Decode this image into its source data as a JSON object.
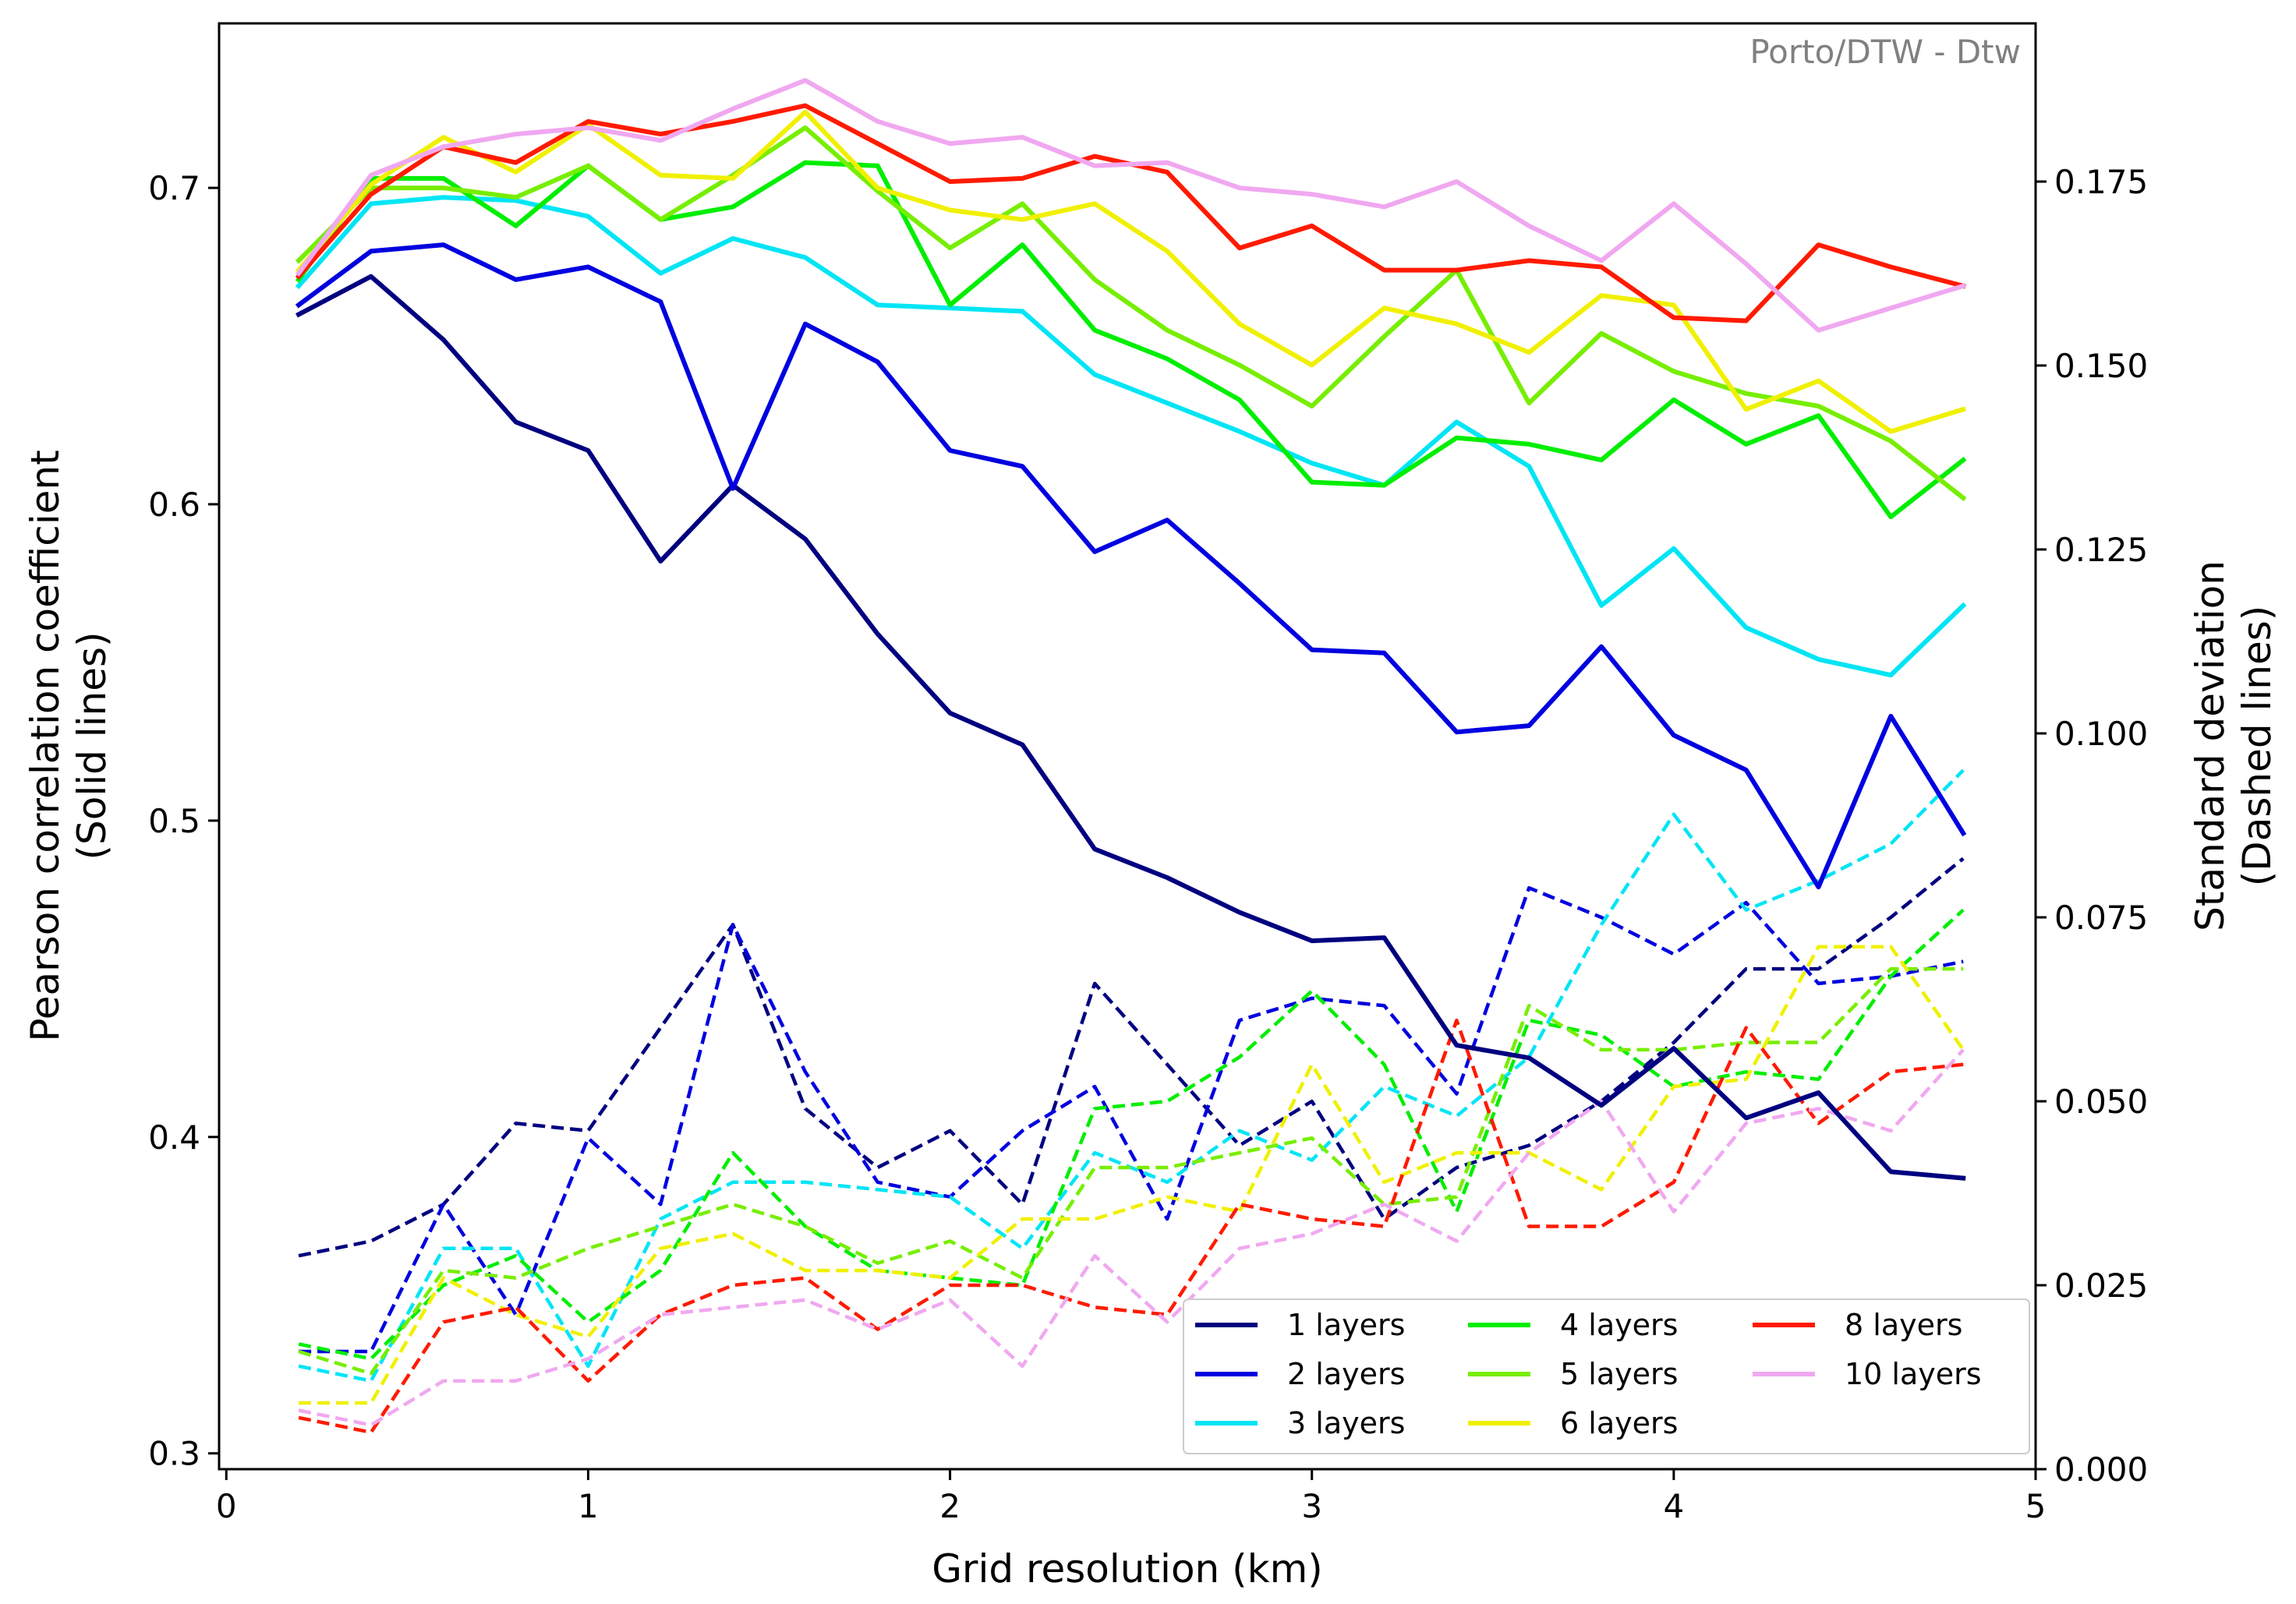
{
  "chart_data": {
    "type": "line",
    "annotation": "Porto/DTW - Dtw",
    "xlabel": "Grid resolution (km)",
    "ylabel_left": [
      "Pearson correlation coefficient",
      "(Solid lines)"
    ],
    "ylabel_right": [
      "Standard deviation",
      "(Dashed lines)"
    ],
    "xlim": [
      -0.02,
      5.0
    ],
    "ylim_left": [
      0.295,
      0.752
    ],
    "ylim_right": [
      0.0,
      0.1965
    ],
    "xticks": [
      0,
      1,
      2,
      3,
      4,
      5
    ],
    "xtick_labels": [
      "0",
      "1",
      "2",
      "3",
      "4",
      "5"
    ],
    "yticks_left": [
      0.3,
      0.4,
      0.5,
      0.6,
      0.7
    ],
    "ytick_labels_left": [
      "0.3",
      "0.4",
      "0.5",
      "0.6",
      "0.7"
    ],
    "yticks_right": [
      0.0,
      0.025,
      0.05,
      0.075,
      0.1,
      0.125,
      0.15,
      0.175
    ],
    "ytick_labels_right": [
      "0.000",
      "0.025",
      "0.050",
      "0.075",
      "0.100",
      "0.125",
      "0.150",
      "0.175"
    ],
    "grid": false,
    "legend_position": "bottom-right",
    "legend_columns": 3,
    "x": [
      0.2,
      0.4,
      0.6,
      0.8,
      1.0,
      1.2,
      1.4,
      1.6,
      1.8,
      2.0,
      2.2,
      2.4,
      2.6,
      2.8,
      3.0,
      3.2,
      3.4,
      3.6,
      3.8,
      4.0,
      4.2,
      4.4,
      4.6,
      4.8
    ],
    "series": [
      {
        "name": "1 layers",
        "color": "#000080",
        "pearson": [
          0.66,
          0.672,
          0.652,
          0.626,
          0.617,
          0.582,
          0.606,
          0.589,
          0.559,
          0.534,
          0.524,
          0.491,
          0.482,
          0.471,
          0.462,
          0.463,
          0.429,
          0.425,
          0.41,
          0.428,
          0.406,
          0.414,
          0.389,
          0.387
        ],
        "std": [
          0.029,
          0.031,
          0.036,
          0.047,
          0.046,
          0.06,
          0.074,
          0.049,
          0.041,
          0.046,
          0.036,
          0.066,
          0.055,
          0.044,
          0.05,
          0.034,
          0.041,
          0.044,
          0.05,
          0.058,
          0.068,
          0.068,
          0.075,
          0.083
        ]
      },
      {
        "name": "2 layers",
        "color": "#0000e0",
        "pearson": [
          0.663,
          0.68,
          0.682,
          0.671,
          0.675,
          0.664,
          0.605,
          0.657,
          0.645,
          0.617,
          0.612,
          0.585,
          0.595,
          0.575,
          0.554,
          0.553,
          0.528,
          0.53,
          0.555,
          0.527,
          0.516,
          0.479,
          0.533,
          0.496
        ],
        "std": [
          0.016,
          0.016,
          0.036,
          0.021,
          0.045,
          0.036,
          0.074,
          0.054,
          0.039,
          0.037,
          0.046,
          0.052,
          0.034,
          0.061,
          0.064,
          0.063,
          0.051,
          0.079,
          0.075,
          0.07,
          0.077,
          0.066,
          0.067,
          0.069
        ]
      },
      {
        "name": "3 layers",
        "color": "#00e5f5",
        "pearson": [
          0.669,
          0.695,
          0.697,
          0.696,
          0.691,
          0.673,
          0.684,
          0.678,
          0.663,
          0.662,
          0.661,
          0.641,
          0.632,
          0.623,
          0.613,
          0.606,
          0.626,
          0.612,
          0.568,
          0.586,
          0.561,
          0.551,
          0.546,
          0.568
        ]
      },
      {
        "name": "4 layers",
        "color": "#00ee00",
        "pearson": [
          0.671,
          0.703,
          0.703,
          0.688,
          0.707,
          0.69,
          0.694,
          0.708,
          0.707,
          0.663,
          0.682,
          0.655,
          0.646,
          0.633,
          0.607,
          0.606,
          0.621,
          0.619,
          0.614,
          0.633,
          0.619,
          0.628,
          0.596,
          0.614
        ]
      },
      {
        "name": "5 layers",
        "color": "#77ee00",
        "pearson": [
          0.677,
          0.7,
          0.7,
          0.697,
          0.707,
          0.69,
          0.704,
          0.719,
          0.699,
          0.681,
          0.695,
          0.671,
          0.655,
          0.644,
          0.631,
          0.653,
          0.674,
          0.632,
          0.654,
          0.642,
          0.635,
          0.631,
          0.62,
          0.602
        ]
      },
      {
        "name": "6 layers",
        "color": "#f0f000",
        "pearson": [
          0.674,
          0.701,
          0.716,
          0.705,
          0.72,
          0.704,
          0.703,
          0.724,
          0.7,
          0.693,
          0.69,
          0.695,
          0.68,
          0.657,
          0.644,
          0.662,
          0.657,
          0.648,
          0.666,
          0.663,
          0.63,
          0.639,
          0.623,
          0.63
        ]
      },
      {
        "name": "8 layers",
        "color": "#ff1a00",
        "pearson": [
          0.672,
          0.698,
          0.713,
          0.708,
          0.721,
          0.717,
          0.721,
          0.726,
          0.714,
          0.702,
          0.703,
          0.71,
          0.705,
          0.681,
          0.688,
          0.674,
          0.674,
          0.677,
          0.675,
          0.659,
          0.658,
          0.682,
          0.675,
          0.669
        ]
      },
      {
        "name": "10 layers",
        "color": "#f0a8f0",
        "pearson": [
          0.673,
          0.704,
          0.713,
          0.717,
          0.719,
          0.715,
          0.725,
          0.734,
          0.721,
          0.714,
          0.716,
          0.707,
          0.708,
          0.7,
          0.698,
          0.694,
          0.702,
          0.688,
          0.677,
          0.695,
          0.676,
          0.655,
          0.662,
          0.669
        ]
      }
    ],
    "std_extra": {
      "3 layers": [
        0.014,
        0.012,
        0.03,
        0.03,
        0.014,
        0.034,
        0.039,
        0.039,
        0.038,
        0.037,
        0.03,
        0.043,
        0.039,
        0.046,
        0.042,
        0.052,
        0.048,
        0.056,
        0.074,
        0.089,
        0.076,
        0.08,
        0.085,
        0.095
      ],
      "4 layers": [
        0.017,
        0.015,
        0.025,
        0.029,
        0.02,
        0.027,
        0.043,
        0.033,
        0.027,
        0.026,
        0.025,
        0.049,
        0.05,
        0.056,
        0.065,
        0.055,
        0.035,
        0.061,
        0.059,
        0.052,
        0.054,
        0.053,
        0.067,
        0.076
      ],
      "5 layers": [
        0.016,
        0.013,
        0.027,
        0.026,
        0.03,
        0.033,
        0.036,
        0.033,
        0.028,
        0.031,
        0.026,
        0.041,
        0.041,
        0.043,
        0.045,
        0.036,
        0.037,
        0.063,
        0.057,
        0.057,
        0.058,
        0.058,
        0.068,
        0.068
      ],
      "6 layers": [
        0.009,
        0.009,
        0.026,
        0.021,
        0.018,
        0.03,
        0.032,
        0.027,
        0.027,
        0.026,
        0.034,
        0.034,
        0.037,
        0.035,
        0.055,
        0.039,
        0.043,
        0.043,
        0.038,
        0.052,
        0.053,
        0.071,
        0.071,
        0.057
      ],
      "8 layers": [
        0.007,
        0.005,
        0.02,
        0.022,
        0.012,
        0.021,
        0.025,
        0.026,
        0.019,
        0.025,
        0.025,
        0.022,
        0.021,
        0.036,
        0.034,
        0.033,
        0.061,
        0.033,
        0.033,
        0.039,
        0.06,
        0.047,
        0.054,
        0.055
      ],
      "10 layers": [
        0.008,
        0.006,
        0.012,
        0.012,
        0.015,
        0.021,
        0.022,
        0.023,
        0.019,
        0.023,
        0.014,
        0.029,
        0.02,
        0.03,
        0.032,
        0.036,
        0.031,
        0.043,
        0.05,
        0.035,
        0.047,
        0.049,
        0.046,
        0.057
      ]
    }
  }
}
